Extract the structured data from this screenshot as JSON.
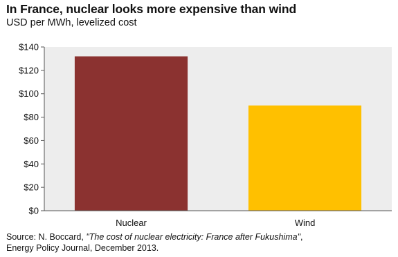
{
  "chart_data": {
    "type": "bar",
    "title": "In France, nuclear looks more expensive than wind",
    "subtitle": "USD per MWh, levelized cost",
    "categories": [
      "Nuclear",
      "Wind"
    ],
    "values": [
      132,
      90
    ],
    "colors": [
      "#8B3230",
      "#FFC000"
    ],
    "ylim": [
      0,
      140
    ],
    "yticks": [
      0,
      20,
      40,
      60,
      80,
      100,
      120,
      140
    ],
    "ytick_labels": [
      "$0",
      "$20",
      "$40",
      "$60",
      "$80",
      "$100",
      "$120",
      "$140"
    ],
    "xlabel": "",
    "ylabel": "",
    "grid": false,
    "plot_background": "#EDEDED"
  },
  "source": {
    "prefix": "Source: N. Boccard, ",
    "title_italic": "\"The cost of nuclear electricity: France after Fukushima\"",
    "suffix": ",",
    "line2": "Energy Policy Journal, December 2013."
  }
}
